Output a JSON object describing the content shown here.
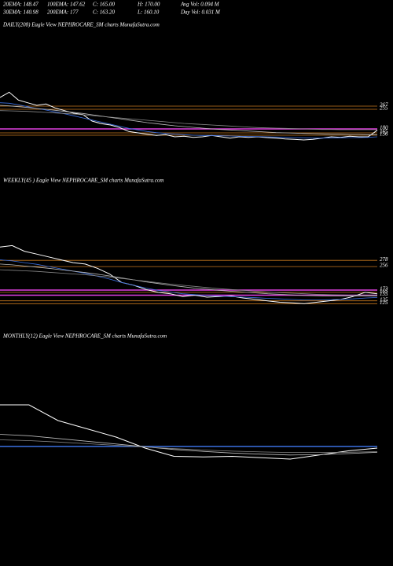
{
  "header": {
    "rows": [
      [
        "20EMA: 148.47",
        "100EMA: 147.62",
        "C: 165.00",
        "H: 170.00",
        "Avg Vol: 0.094  M"
      ],
      [
        "30EMA: 140.98",
        "200EMA: 177",
        "C: 163.20",
        "L: 160.10",
        "Day Vol: 0.031  M"
      ]
    ]
  },
  "chart_data": [
    {
      "type": "line",
      "title": "DAILY(208) Eagle   View   NEPHROCARE_SM charts MunafaSutra.com",
      "ylim": [
        57,
        552
      ],
      "levels": [
        {
          "value": 267,
          "color": "#c8781e"
        },
        {
          "value": 255,
          "color": "#c8781e"
        },
        {
          "value": 180,
          "color": "#e040e0"
        },
        {
          "value": 165,
          "color": "#c8781e"
        },
        {
          "value": 156,
          "color": "#c8781e"
        }
      ],
      "series": [
        {
          "color": "#ffffff",
          "values": [
            300,
            320,
            290,
            280,
            270,
            275,
            260,
            250,
            240,
            235,
            210,
            200,
            195,
            185,
            170,
            165,
            160,
            155,
            158,
            150,
            152,
            148,
            150,
            155,
            150,
            145,
            150,
            148,
            150,
            147,
            145,
            142,
            140,
            138,
            140,
            145,
            150,
            148,
            152,
            150,
            150,
            175
          ]
        },
        {
          "color": "#3b6fe0",
          "values": [
            280,
            278,
            272,
            265,
            258,
            252,
            245,
            238,
            230,
            222,
            214,
            206,
            198,
            190,
            182,
            176,
            170,
            166,
            163,
            160,
            158,
            156,
            155,
            155,
            154,
            153,
            152,
            151,
            151,
            150,
            149,
            148,
            147,
            146,
            145,
            145,
            146,
            146,
            147,
            147,
            148,
            150
          ]
        },
        {
          "color": "#bbbbbb",
          "values": [
            270,
            268,
            265,
            262,
            258,
            255,
            251,
            247,
            243,
            239,
            234,
            229,
            224,
            219,
            214,
            209,
            204,
            200,
            196,
            192,
            189,
            186,
            183,
            180,
            178,
            176,
            174,
            172,
            170,
            168,
            166,
            165,
            164,
            163,
            162,
            161,
            160,
            160,
            159,
            159,
            158,
            158
          ]
        },
        {
          "color": "#888888",
          "values": [
            250,
            249,
            248,
            247,
            245,
            243,
            241,
            239,
            237,
            234,
            231,
            228,
            225,
            222,
            219,
            216,
            213,
            210,
            207,
            204,
            201,
            199,
            197,
            195,
            193,
            191,
            189,
            187,
            185,
            184,
            183,
            182,
            181,
            180,
            179,
            178,
            178,
            177,
            177,
            177,
            177,
            177
          ]
        }
      ]
    },
    {
      "type": "line",
      "title": "WEEKLY(45                    ) Eagle   View   NEPHROCARE_SM charts MunafaSutra.com",
      "ylim": [
        87,
        531
      ],
      "levels": [
        {
          "value": 278,
          "color": "#c8781e"
        },
        {
          "value": 256,
          "color": "#c8781e"
        },
        {
          "value": 173,
          "color": "#e040e0"
        },
        {
          "value": 165,
          "color": "#c8781e"
        },
        {
          "value": 155,
          "color": "#e040e0"
        },
        {
          "value": 135,
          "color": "#c8781e"
        },
        {
          "value": 125,
          "color": "#c8781e"
        }
      ],
      "series": [
        {
          "color": "#ffffff",
          "values": [
            325,
            330,
            310,
            300,
            290,
            280,
            270,
            265,
            250,
            230,
            200,
            190,
            175,
            165,
            160,
            150,
            155,
            148,
            150,
            152,
            145,
            140,
            135,
            130,
            128,
            125,
            130,
            135,
            140,
            150,
            165,
            160
          ]
        },
        {
          "color": "#3b6fe0",
          "values": [
            280,
            276,
            270,
            264,
            256,
            248,
            240,
            232,
            222,
            212,
            200,
            190,
            180,
            172,
            166,
            160,
            157,
            154,
            152,
            150,
            148,
            146,
            144,
            142,
            140,
            138,
            138,
            139,
            140,
            142,
            145,
            147
          ]
        },
        {
          "color": "#bbbbbb",
          "values": [
            265,
            262,
            258,
            254,
            250,
            245,
            240,
            235,
            229,
            223,
            216,
            209,
            202,
            196,
            190,
            185,
            180,
            176,
            172,
            169,
            166,
            163,
            160,
            158,
            156,
            154,
            153,
            152,
            152,
            152,
            152,
            152
          ]
        },
        {
          "color": "#888888",
          "values": [
            245,
            243,
            241,
            239,
            236,
            233,
            230,
            227,
            223,
            219,
            214,
            209,
            204,
            199,
            194,
            190,
            186,
            182,
            178,
            175,
            172,
            169,
            166,
            164,
            162,
            160,
            158,
            157,
            156,
            155,
            155,
            155
          ]
        }
      ]
    },
    {
      "type": "line",
      "title": "MONTHLY(12) Eagle   View   NEPHROCARE_SM charts MunafaSutra.com",
      "ylim": [
        0,
        600
      ],
      "levels": [
        {
          "value": 206,
          "color": "#3b6fe0"
        }
      ],
      "series": [
        {
          "color": "#ffffff",
          "values": [
            357,
            357,
            300,
            270,
            240,
            200,
            170,
            168,
            170,
            165,
            160,
            175,
            190,
            200
          ]
        },
        {
          "color": "#bbbbbb",
          "values": [
            250,
            245,
            235,
            225,
            215,
            205,
            195,
            188,
            182,
            178,
            175,
            176,
            180,
            185
          ]
        },
        {
          "color": "#888888",
          "values": [
            230,
            227,
            222,
            216,
            210,
            204,
            198,
            193,
            189,
            186,
            184,
            184,
            185,
            187
          ]
        }
      ]
    }
  ]
}
